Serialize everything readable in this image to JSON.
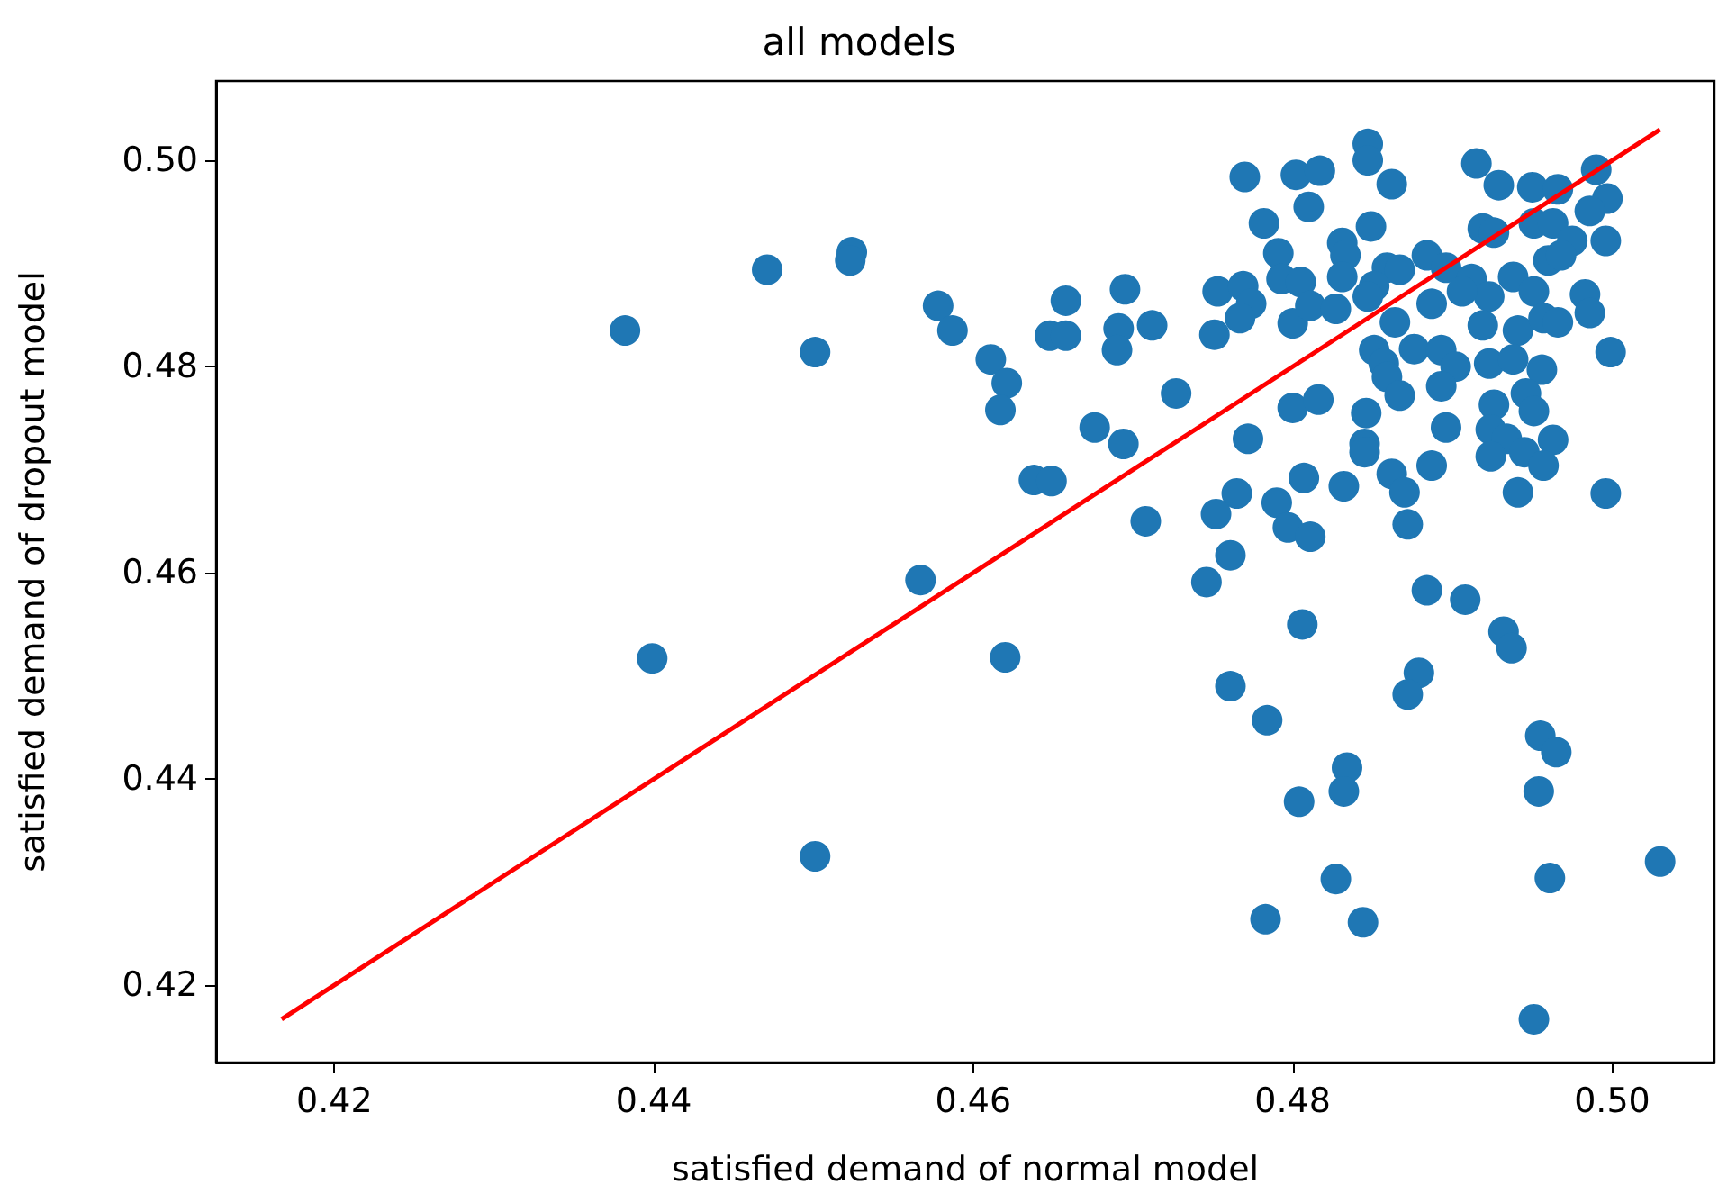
{
  "chart_data": {
    "type": "scatter",
    "title": "all models",
    "xlabel": "satisfied demand of normal model",
    "ylabel": "satisfied demand of dropout model",
    "xlim": [
      0.4126,
      0.5064
    ],
    "ylim": [
      0.4125,
      0.5077
    ],
    "xticks": [
      0.42,
      0.44,
      0.46,
      0.48,
      {
        "value": 0.5,
        "label": "0.50"
      }
    ],
    "yticks": [
      0.42,
      0.44,
      0.46,
      0.48,
      {
        "value": 0.5,
        "label": "0.50"
      }
    ],
    "marker": "circle",
    "series": [
      {
        "color": "#1f77b4",
        "x": [
          0.4382,
          0.4471,
          0.4501,
          0.4524,
          0.4523,
          0.4399,
          0.4501,
          0.4567,
          0.4578,
          0.4587,
          0.4611,
          0.4621,
          0.4617,
          0.4638,
          0.4649,
          0.4648,
          0.4658,
          0.4658,
          0.4695,
          0.4691,
          0.469,
          0.4712,
          0.4727,
          0.4676,
          0.4694,
          0.4708,
          0.462,
          0.477,
          0.4802,
          0.4817,
          0.4847,
          0.4847,
          0.4862,
          0.481,
          0.4782,
          0.4849,
          0.4915,
          0.4929,
          0.495,
          0.4966,
          0.499,
          0.4997,
          0.4986,
          0.4919,
          0.4926,
          0.4951,
          0.4963,
          0.4975,
          0.4996,
          0.4791,
          0.4831,
          0.4833,
          0.4884,
          0.4859,
          0.4867,
          0.4896,
          0.4753,
          0.4769,
          0.4774,
          0.4793,
          0.4805,
          0.4831,
          0.4851,
          0.4912,
          0.4938,
          0.496,
          0.4968,
          0.4951,
          0.4923,
          0.4887,
          0.4906,
          0.4767,
          0.48,
          0.4811,
          0.4827,
          0.4847,
          0.4864,
          0.4751,
          0.4919,
          0.4941,
          0.4957,
          0.4966,
          0.4983,
          0.4986,
          0.4999,
          0.4851,
          0.4857,
          0.4876,
          0.4893,
          0.4902,
          0.4859,
          0.4867,
          0.4893,
          0.4923,
          0.4938,
          0.4956,
          0.4926,
          0.4946,
          0.4951,
          0.48,
          0.4816,
          0.4772,
          0.4846,
          0.4845,
          0.4845,
          0.4896,
          0.4924,
          0.4934,
          0.4963,
          0.4924,
          0.4945,
          0.4957,
          0.4941,
          0.4887,
          0.4862,
          0.487,
          0.4832,
          0.4807,
          0.4765,
          0.479,
          0.4752,
          0.4797,
          0.4811,
          0.4872,
          0.4761,
          0.4996,
          0.4746,
          0.4806,
          0.4884,
          0.4908,
          0.4932,
          0.4937,
          0.4761,
          0.4784,
          0.4879,
          0.4872,
          0.4955,
          0.4965,
          0.4954,
          0.4834,
          0.4832,
          0.4804,
          0.4827,
          0.4783,
          0.4844,
          0.4961,
          0.503,
          0.4951
        ],
        "values": [
          0.4835,
          0.4894,
          0.4814,
          0.4911,
          0.4903,
          0.4517,
          0.4325,
          0.4593,
          0.4859,
          0.4835,
          0.4807,
          0.4784,
          0.4758,
          0.469,
          0.4689,
          0.483,
          0.483,
          0.4864,
          0.4875,
          0.4837,
          0.4816,
          0.484,
          0.4774,
          0.4741,
          0.4725,
          0.465,
          0.4518,
          0.4984,
          0.4986,
          0.499,
          0.5016,
          0.5,
          0.4977,
          0.4955,
          0.4939,
          0.4936,
          0.4997,
          0.4976,
          0.4974,
          0.4972,
          0.4991,
          0.4963,
          0.4951,
          0.4934,
          0.493,
          0.4939,
          0.4939,
          0.4922,
          0.4922,
          0.491,
          0.492,
          0.4908,
          0.4908,
          0.4896,
          0.4894,
          0.4896,
          0.4873,
          0.4878,
          0.4861,
          0.4885,
          0.4882,
          0.4887,
          0.4878,
          0.4885,
          0.4887,
          0.4903,
          0.4908,
          0.4873,
          0.4868,
          0.4861,
          0.4873,
          0.4847,
          0.4842,
          0.4859,
          0.4856,
          0.4868,
          0.4843,
          0.4831,
          0.484,
          0.4835,
          0.4847,
          0.4843,
          0.487,
          0.4852,
          0.4814,
          0.4816,
          0.4803,
          0.4817,
          0.4816,
          0.48,
          0.479,
          0.4772,
          0.4781,
          0.4803,
          0.4807,
          0.4797,
          0.4763,
          0.4774,
          0.4757,
          0.476,
          0.4768,
          0.473,
          0.4755,
          0.4725,
          0.4717,
          0.4741,
          0.4739,
          0.473,
          0.4729,
          0.4713,
          0.4717,
          0.4704,
          0.4678,
          0.4704,
          0.4696,
          0.4678,
          0.4684,
          0.4692,
          0.4677,
          0.4668,
          0.4657,
          0.4644,
          0.4635,
          0.4647,
          0.4617,
          0.4677,
          0.4591,
          0.455,
          0.4583,
          0.4574,
          0.4543,
          0.4527,
          0.449,
          0.4457,
          0.4503,
          0.4482,
          0.4442,
          0.4426,
          0.4388,
          0.4411,
          0.4388,
          0.4378,
          0.4303,
          0.4264,
          0.4261,
          0.4304,
          0.432,
          0.4167
        ]
      },
      {
        "type": "line",
        "color": "#ff0000",
        "marker": "none",
        "line_style": "solid",
        "x": [
          0.4167,
          0.503
        ],
        "values": [
          0.4167,
          0.503
        ]
      }
    ]
  }
}
